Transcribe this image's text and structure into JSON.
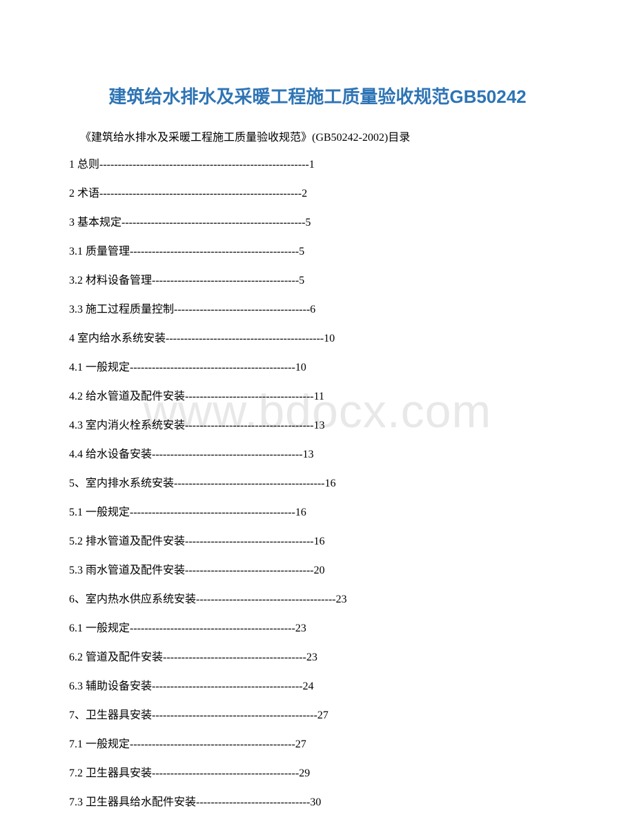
{
  "title": "建筑给水排水及采暖工程施工质量验收规范GB50242",
  "subtitle": "《建筑给水排水及采暖工程施工质量验收规范》(GB50242-2002)目录",
  "watermark": "www.bdocx.com",
  "colors": {
    "title_color": "#2e74b5",
    "text_color": "#000000",
    "watermark_color": "#e8e8e8",
    "background": "#ffffff"
  },
  "typography": {
    "title_fontsize": 26,
    "body_fontsize": 16,
    "watermark_fontsize": 68
  },
  "toc_entries": [
    {
      "label": "1 总则",
      "dashes": "---------------------------------------------------------",
      "page": "1"
    },
    {
      "label": "2 术语",
      "dashes": "-------------------------------------------------------",
      "page": "2"
    },
    {
      "label": "3 基本规定",
      "dashes": "--------------------------------------------------",
      "page": "5"
    },
    {
      "label": "3.1 质量管理",
      "dashes": "----------------------------------------------",
      "page": "5"
    },
    {
      "label": "3.2 材料设备管理",
      "dashes": "----------------------------------------",
      "page": "5"
    },
    {
      "label": "3.3 施工过程质量控制",
      "dashes": "-------------------------------------",
      "page": "6"
    },
    {
      "label": "4 室内给水系统安装",
      "dashes": "-------------------------------------------",
      "page": "10"
    },
    {
      "label": "4.1 一般规定",
      "dashes": "---------------------------------------------",
      "page": "10"
    },
    {
      "label": "4.2 给水管道及配件安装",
      "dashes": "-----------------------------------",
      "page": "11"
    },
    {
      "label": "4.3 室内消火栓系统安装",
      "dashes": "-----------------------------------",
      "page": "13"
    },
    {
      "label": "4.4 给水设备安装",
      "dashes": "-----------------------------------------",
      "page": "13"
    },
    {
      "label": "5、室内排水系统安装",
      "dashes": "-----------------------------------------",
      "page": "16"
    },
    {
      "label": "5.1 一般规定",
      "dashes": "---------------------------------------------",
      "page": "16"
    },
    {
      "label": "5.2 排水管道及配件安装",
      "dashes": "-----------------------------------",
      "page": "16"
    },
    {
      "label": "5.3 雨水管道及配件安装",
      "dashes": "-----------------------------------",
      "page": "20"
    },
    {
      "label": "6、室内热水供应系统安装",
      "dashes": "--------------------------------------",
      "page": "23"
    },
    {
      "label": "6.1 一般规定",
      "dashes": "---------------------------------------------",
      "page": "23"
    },
    {
      "label": "6.2 管道及配件安装",
      "dashes": "---------------------------------------",
      "page": "23"
    },
    {
      "label": "6.3 辅助设备安装",
      "dashes": "-----------------------------------------",
      "page": "24"
    },
    {
      "label": "7、卫生器具安装",
      "dashes": "---------------------------------------------",
      "page": "27"
    },
    {
      "label": "7.1 一般规定",
      "dashes": "---------------------------------------------",
      "page": "27"
    },
    {
      "label": "7.2 卫生器具安装",
      "dashes": "----------------------------------------",
      "page": "29"
    },
    {
      "label": "7.3 卫生器具给水配件安装",
      "dashes": "-------------------------------",
      "page": "30"
    }
  ]
}
